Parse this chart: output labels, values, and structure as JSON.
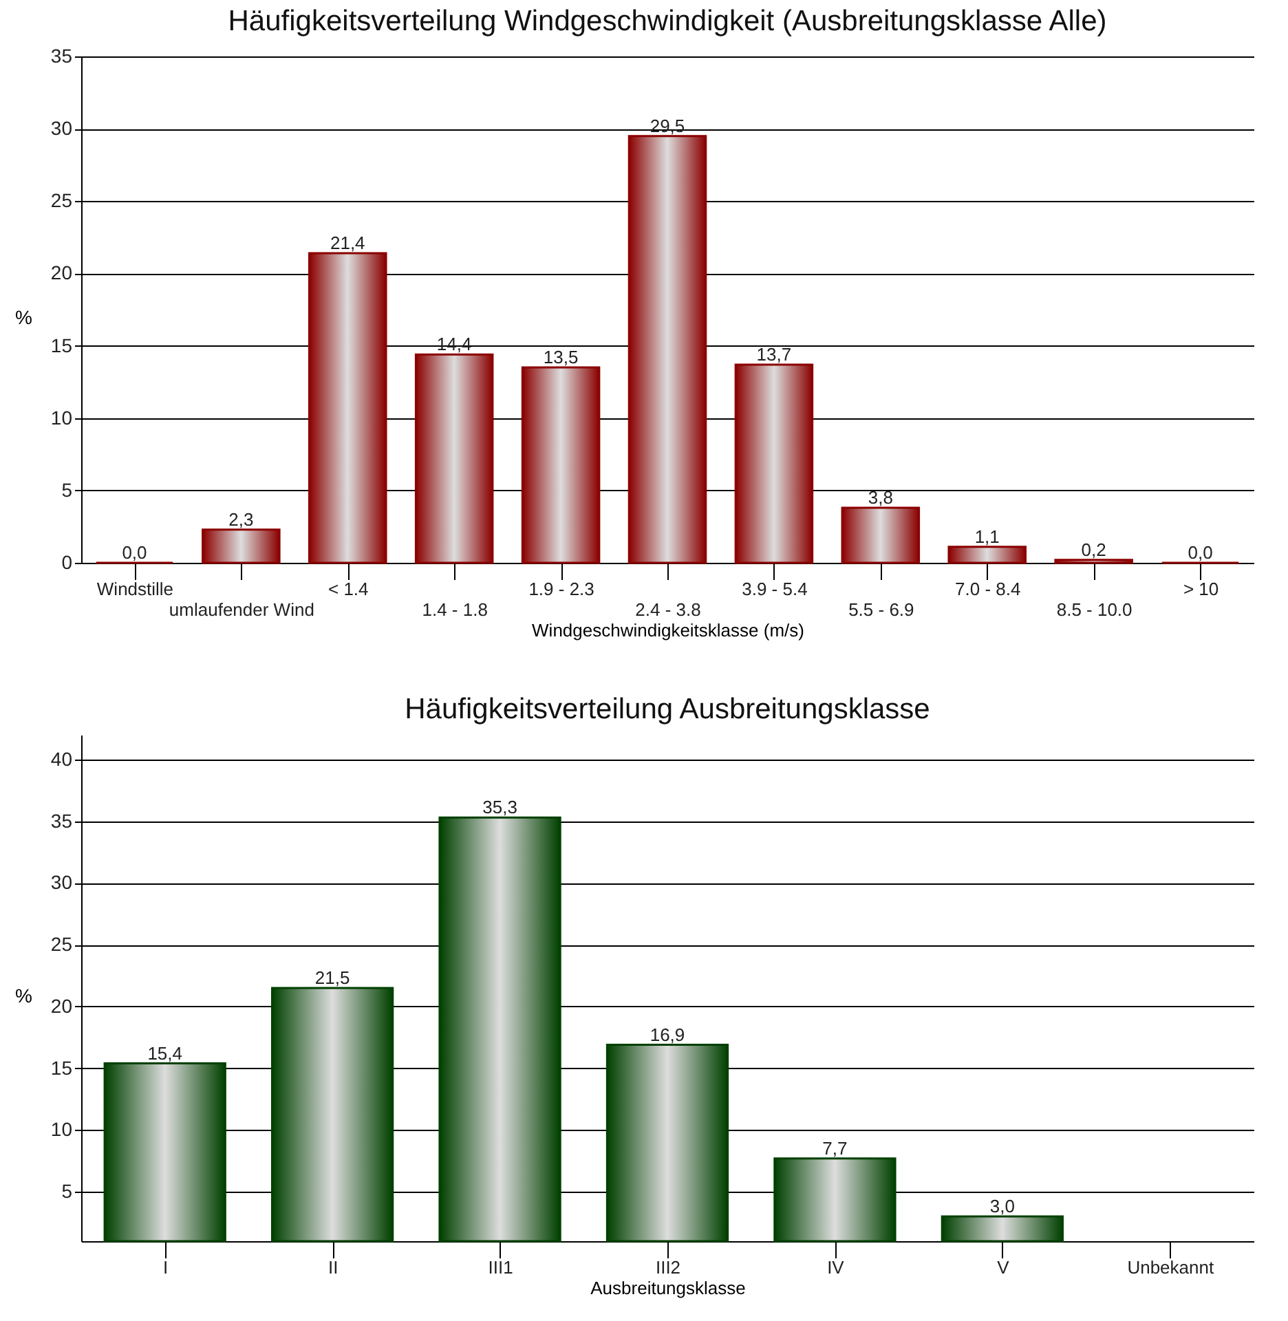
{
  "chart_data": [
    {
      "type": "bar",
      "title": "Häufigkeitsverteilung Windgeschwindigkeit (Ausbreitungsklasse Alle)",
      "xlabel": "Windgeschwindigkeitsklasse (m/s)",
      "ylabel": "%",
      "categories": [
        "Windstille",
        "umlaufender Wind",
        "< 1.4",
        "1.4 - 1.8",
        "1.9 - 2.3",
        "2.4 - 3.8",
        "3.9 - 5.4",
        "5.5 - 6.9",
        "7.0 - 8.4",
        "8.5 - 10.0",
        "> 10"
      ],
      "values": [
        0.0,
        2.3,
        21.4,
        14.4,
        13.5,
        29.5,
        13.7,
        3.8,
        1.1,
        0.2,
        0.0
      ],
      "value_labels": [
        "0,0",
        "2,3",
        "21,4",
        "14,4",
        "13,5",
        "29,5",
        "13,7",
        "3,8",
        "1,1",
        "0,2",
        "0,0"
      ],
      "color": "#8b0000",
      "ylim": [
        0,
        35
      ],
      "yticks": [
        0,
        5,
        10,
        15,
        20,
        25,
        30,
        35
      ],
      "grid": "y"
    },
    {
      "type": "bar",
      "title": "Häufigkeitsverteilung Ausbreitungsklasse",
      "xlabel": "Ausbreitungsklasse",
      "ylabel": "%",
      "categories": [
        "I",
        "II",
        "III1",
        "III2",
        "IV",
        "V",
        "Unbekannt"
      ],
      "values": [
        15.4,
        21.5,
        35.3,
        16.9,
        7.7,
        3.0,
        null
      ],
      "value_labels": [
        "15,4",
        "21,5",
        "35,3",
        "16,9",
        "7,7",
        "3,0",
        null
      ],
      "color": "#004000",
      "ylim": [
        1,
        42
      ],
      "yticks": [
        5,
        10,
        15,
        20,
        25,
        30,
        35,
        40
      ],
      "grid": "y"
    }
  ]
}
